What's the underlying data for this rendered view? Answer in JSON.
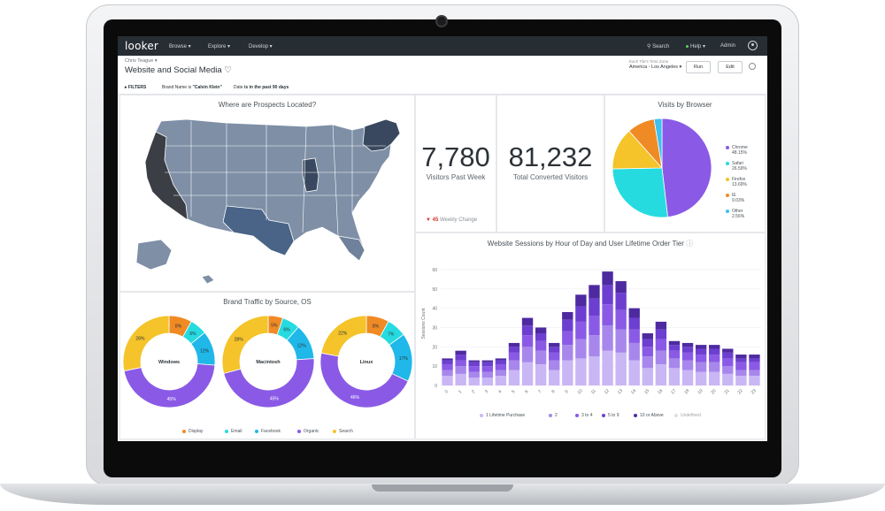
{
  "nav": {
    "logo": "looker",
    "menu": [
      "Browse ▾",
      "Explore ▾",
      "Develop ▾"
    ],
    "search": "Search",
    "help": "Help ▾",
    "admin": "Admin"
  },
  "header": {
    "owner": "Chris Teague ▾",
    "title": "Website and Social Media ♡",
    "tz_label": "Each Tile's Time Zone",
    "tz_value": "America - Los Angeles ▾",
    "run": "Run",
    "edit": "Edit"
  },
  "filters": {
    "label": "FILTERS",
    "brand_key": "Brand Name",
    "brand_op": "is",
    "brand_value": "\"Calvin Klein\"",
    "date_key": "Date",
    "date_op": "is in the past 90 days"
  },
  "map": {
    "title": "Where are Prospects Located?"
  },
  "kpi": {
    "visitors_value": "7,780",
    "visitors_label": "Visitors Past Week",
    "change_arrow": "▼",
    "change_value": "45",
    "change_label": "Weekly Change",
    "converted_value": "81,232",
    "converted_label": "Total Converted Visitors"
  },
  "browser_chart": {
    "title": "Visits by Browser",
    "items": [
      {
        "name": "Chrome",
        "pct": "48.15%",
        "value": 48.15,
        "color": "#8a5ae6"
      },
      {
        "name": "Safari",
        "pct": "26.59%",
        "value": 26.59,
        "color": "#25dbe0"
      },
      {
        "name": "Firefox",
        "pct": "13.69%",
        "value": 13.69,
        "color": "#f5c32a"
      },
      {
        "name": "IE",
        "pct": "9.03%",
        "value": 9.03,
        "color": "#f08a24"
      },
      {
        "name": "Other",
        "pct": "2.56%",
        "value": 2.56,
        "color": "#3ec0f0"
      }
    ]
  },
  "traffic": {
    "title": "Brand Traffic by Source, OS",
    "donuts": [
      {
        "label": "Windows",
        "slices": [
          {
            "src": "Display",
            "value": 8,
            "text": "8%"
          },
          {
            "src": "Email",
            "value": 6,
            "text": "6%"
          },
          {
            "src": "Facebook",
            "value": 12,
            "text": "12%"
          },
          {
            "src": "Organic",
            "value": 45,
            "text": "45%"
          },
          {
            "src": "Search",
            "value": 28,
            "text": "28%"
          }
        ]
      },
      {
        "label": "Macintosh",
        "slices": [
          {
            "src": "Display",
            "value": 5,
            "text": "5%"
          },
          {
            "src": "Email",
            "value": 6,
            "text": "6%"
          },
          {
            "src": "Facebook",
            "value": 12,
            "text": "12%"
          },
          {
            "src": "Organic",
            "value": 45,
            "text": "45%"
          },
          {
            "src": "Search",
            "value": 28,
            "text": "28%"
          }
        ]
      },
      {
        "label": "Linux",
        "slices": [
          {
            "src": "Display",
            "value": 8,
            "text": "8%"
          },
          {
            "src": "Email",
            "value": 7,
            "text": "7%"
          },
          {
            "src": "Facebook",
            "value": 17,
            "text": "17%"
          },
          {
            "src": "Organic",
            "value": 46,
            "text": "46%"
          },
          {
            "src": "Search",
            "value": 22,
            "text": "22%"
          }
        ]
      }
    ],
    "legend": [
      {
        "name": "Display",
        "color": "#f08a24"
      },
      {
        "name": "Email",
        "color": "#25dbe0"
      },
      {
        "name": "Facebook",
        "color": "#1fb8e8"
      },
      {
        "name": "Organic",
        "color": "#8a5ae6"
      },
      {
        "name": "Search",
        "color": "#f5c32a"
      }
    ]
  },
  "sessions": {
    "title": "Website Sessions by Hour of Day and User Lifetime Order Tier",
    "info_icon": "ⓘ",
    "ylabel": "Sessions Count",
    "legend": [
      {
        "name": "1 Lifetime Purchase",
        "color": "#c9b6f5"
      },
      {
        "name": "2",
        "color": "#a887ec"
      },
      {
        "name": "3 to 4",
        "color": "#8a5ae6"
      },
      {
        "name": "5 to 9",
        "color": "#6d3fd0"
      },
      {
        "name": "10 or Above",
        "color": "#4e2aa0"
      },
      {
        "name": "Undefined",
        "color": "#dddfe3"
      }
    ]
  },
  "chart_data": {
    "type": "bar",
    "title": "Website Sessions by Hour of Day and User Lifetime Order Tier",
    "xlabel": "",
    "ylabel": "Sessions Count",
    "ylim": [
      0,
      65
    ],
    "yticks": [
      0,
      10,
      20,
      30,
      40,
      50,
      60
    ],
    "categories": [
      "0",
      "1",
      "2",
      "3",
      "4",
      "5",
      "6",
      "7",
      "8",
      "9",
      "10",
      "11",
      "12",
      "13",
      "14",
      "15",
      "16",
      "17",
      "18",
      "19",
      "20",
      "21",
      "22",
      "23"
    ],
    "stacked": true,
    "series": [
      {
        "name": "1 Lifetime Purchase",
        "values": [
          5,
          6,
          4,
          4,
          5,
          8,
          12,
          11,
          8,
          13,
          14,
          15,
          18,
          17,
          13,
          9,
          11,
          9,
          8,
          7,
          7,
          6,
          5,
          5
        ]
      },
      {
        "name": "2",
        "values": [
          3,
          4,
          3,
          3,
          3,
          5,
          8,
          7,
          5,
          8,
          10,
          11,
          13,
          12,
          9,
          6,
          7,
          5,
          5,
          5,
          5,
          4,
          3,
          3
        ]
      },
      {
        "name": "3 to 4",
        "values": [
          3,
          3,
          3,
          3,
          3,
          4,
          6,
          5,
          4,
          7,
          9,
          10,
          11,
          10,
          7,
          5,
          6,
          4,
          4,
          4,
          4,
          4,
          4,
          4
        ]
      },
      {
        "name": "5 to 9",
        "values": [
          2,
          3,
          2,
          2,
          2,
          3,
          5,
          4,
          3,
          6,
          8,
          9,
          10,
          9,
          6,
          4,
          5,
          3,
          3,
          3,
          3,
          3,
          2,
          2
        ]
      },
      {
        "name": "10 or Above",
        "values": [
          1,
          2,
          1,
          1,
          1,
          2,
          4,
          3,
          2,
          4,
          6,
          7,
          7,
          6,
          5,
          3,
          4,
          2,
          2,
          2,
          2,
          2,
          2,
          2
        ]
      },
      {
        "name": "Undefined",
        "values": [
          0,
          0,
          0,
          0,
          0,
          0,
          0,
          0,
          0,
          0,
          0,
          0,
          0,
          0,
          0,
          0,
          0,
          0,
          0,
          0,
          0,
          0,
          0,
          0
        ]
      }
    ]
  }
}
